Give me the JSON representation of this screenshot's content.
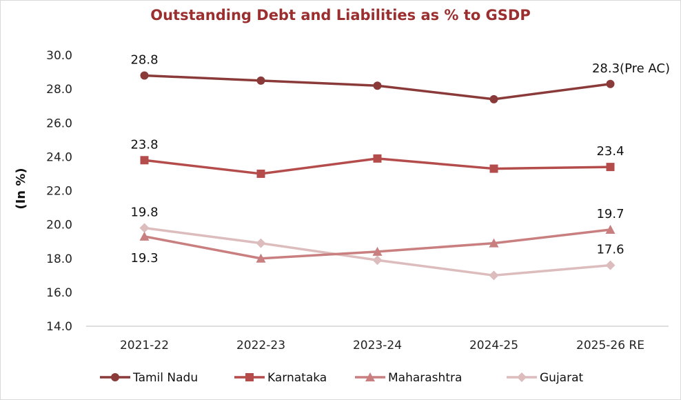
{
  "chart_data": {
    "type": "line",
    "title": "Outstanding Debt and Liabilities as % to GSDP",
    "ylabel": "(In %)",
    "xlabel": "",
    "categories": [
      "2021-22",
      "2022-23",
      "2023-24",
      "2024-25",
      "2025-26 RE"
    ],
    "ylim": [
      14.0,
      30.0
    ],
    "yticks": [
      "14.0",
      "16.0",
      "18.0",
      "20.0",
      "22.0",
      "24.0",
      "26.0",
      "28.0",
      "30.0"
    ],
    "grid": false,
    "legend_position": "bottom",
    "series": [
      {
        "name": "Tamil Nadu",
        "values": [
          28.8,
          28.5,
          28.2,
          27.4,
          28.3
        ],
        "color": "#8b3a3a",
        "marker": "circle"
      },
      {
        "name": "Karnataka",
        "values": [
          23.8,
          23.0,
          23.9,
          23.3,
          23.4
        ],
        "color": "#b44c4c",
        "marker": "square"
      },
      {
        "name": "Maharashtra",
        "values": [
          19.3,
          18.0,
          18.4,
          18.9,
          19.7
        ],
        "color": "#c97f7f",
        "marker": "triangle"
      },
      {
        "name": "Gujarat",
        "values": [
          19.8,
          18.9,
          17.9,
          17.0,
          17.6
        ],
        "color": "#dcbcbc",
        "marker": "diamond"
      }
    ],
    "data_labels": [
      {
        "series": 0,
        "point": 0,
        "text": "28.8",
        "pos": "above"
      },
      {
        "series": 0,
        "point": 4,
        "text": "28.3(Pre AC)",
        "pos": "above"
      },
      {
        "series": 1,
        "point": 0,
        "text": "23.8",
        "pos": "above"
      },
      {
        "series": 1,
        "point": 4,
        "text": "23.4",
        "pos": "above"
      },
      {
        "series": 3,
        "point": 0,
        "text": "19.8",
        "pos": "above"
      },
      {
        "series": 2,
        "point": 0,
        "text": "19.3",
        "pos": "below"
      },
      {
        "series": 2,
        "point": 4,
        "text": "19.7",
        "pos": "above"
      },
      {
        "series": 3,
        "point": 4,
        "text": "17.6",
        "pos": "above"
      }
    ]
  }
}
